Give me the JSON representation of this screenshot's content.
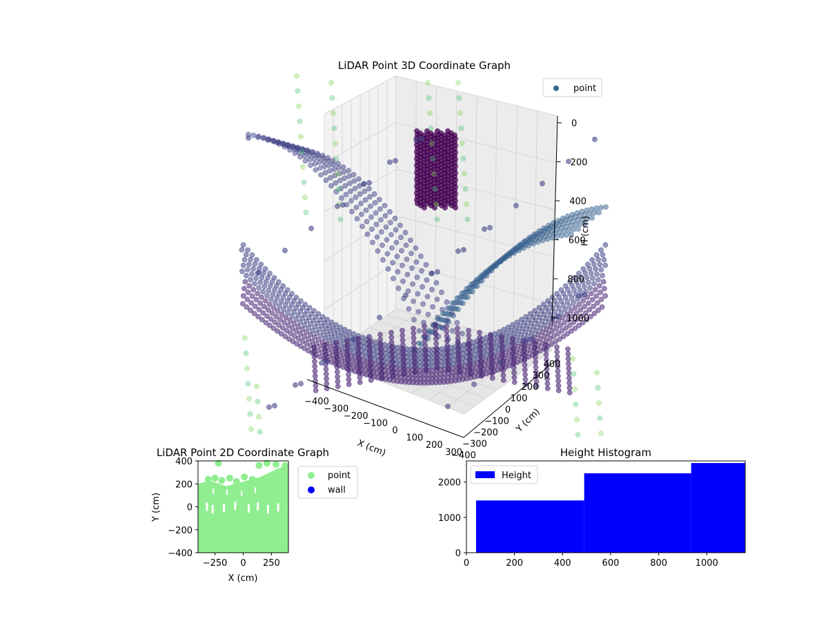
{
  "chart_data": [
    {
      "type": "scatter",
      "projection": "3d",
      "title": "LiDAR Point 3D Coordinate Graph",
      "xlabel": "X (cm)",
      "ylabel": "Y (cm)",
      "zlabel": "H (cm)",
      "xlim": [
        -400,
        400
      ],
      "ylim": [
        -400,
        400
      ],
      "zlim": [
        1100,
        0
      ],
      "z_inverted": true,
      "xticks": [
        "−400",
        "−300",
        "−200",
        "−100",
        "0",
        "100",
        "200",
        "300"
      ],
      "yticks": [
        "−400",
        "−300",
        "−200",
        "−100",
        "0",
        "100",
        "200",
        "300",
        "400"
      ],
      "zticks": [
        "0",
        "200",
        "400",
        "600",
        "800",
        "1000"
      ],
      "grid": true,
      "colormap": "viridis",
      "legend": {
        "position": "top-right",
        "entries": [
          {
            "label": "point",
            "color": "#31688e"
          }
        ]
      },
      "series": [
        {
          "name": "point",
          "description_of_clusters": [
            "wall column near x≈-60,y≈260 at h≈0-350",
            "curved floor arcs at h≈900-1100"
          ]
        }
      ],
      "sample_points": [
        {
          "x": -380,
          "y": -380,
          "h": 1050
        },
        {
          "x": -200,
          "y": -380,
          "h": 1080
        },
        {
          "x": 0,
          "y": -380,
          "h": 1100
        },
        {
          "x": 200,
          "y": -380,
          "h": 1080
        },
        {
          "x": 380,
          "y": -380,
          "h": 1050
        },
        {
          "x": -60,
          "y": 260,
          "h": 50
        },
        {
          "x": -20,
          "y": 260,
          "h": 150
        },
        {
          "x": 20,
          "y": 260,
          "h": 300
        }
      ]
    },
    {
      "type": "scatter",
      "title": "LiDAR Point 2D Coordinate Graph",
      "xlabel": "X (cm)",
      "ylabel": "Y (cm)",
      "xlim": [
        -400,
        400
      ],
      "ylim": [
        -400,
        400
      ],
      "xticks": [
        "−250",
        "0",
        "250"
      ],
      "yticks": [
        "−400",
        "−200",
        "0",
        "200",
        "400"
      ],
      "legend": {
        "position": "outside-right",
        "entries": [
          {
            "label": "point",
            "color": "#90ee90"
          },
          {
            "label": "wall",
            "color": "#0000ff"
          }
        ]
      }
    },
    {
      "type": "bar",
      "histtype": "step-filled",
      "title": "Height Histogram",
      "xlabel": "",
      "ylabel": "",
      "xlim": [
        0,
        1160
      ],
      "ylim": [
        0,
        2600
      ],
      "xticks": [
        "0",
        "200",
        "400",
        "600",
        "800",
        "1000"
      ],
      "yticks": [
        "0",
        "1000",
        "2000"
      ],
      "bins": [
        {
          "x0": 40,
          "x1": 490,
          "count": 1480
        },
        {
          "x0": 490,
          "x1": 935,
          "count": 2250
        },
        {
          "x0": 935,
          "x1": 1160,
          "count": 2540
        }
      ],
      "color": "#0000ff",
      "legend": {
        "position": "top-left",
        "entries": [
          {
            "label": "Height",
            "color": "#0000ff"
          }
        ]
      }
    }
  ]
}
